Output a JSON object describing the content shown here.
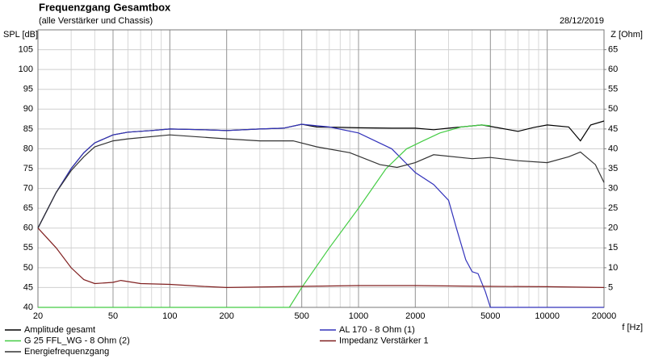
{
  "chart_data": {
    "type": "line",
    "title": "Frequenzgang Gesamtbox",
    "subtitle": "(alle Verstärker und Chassis)",
    "date": "28/12/2019",
    "ylabel": "SPL [dB]",
    "y2label": "Z [Ohm]",
    "xlabel": "f [Hz]",
    "xscale": "log",
    "xlim": [
      20,
      20000
    ],
    "xticks": [
      20,
      50,
      100,
      200,
      500,
      1000,
      2000,
      5000,
      10000,
      20000
    ],
    "xminor_grid": true,
    "ylim": [
      40,
      110
    ],
    "yticks": [
      40,
      45,
      50,
      55,
      60,
      65,
      70,
      75,
      80,
      85,
      90,
      95,
      100,
      105
    ],
    "y2lim": [
      0,
      70
    ],
    "y2ticks": [
      5,
      10,
      15,
      20,
      25,
      30,
      35,
      40,
      45,
      50,
      55,
      60,
      65
    ],
    "grid": true,
    "legend": "bottom",
    "series": [
      {
        "name": "Amplitude gesamt",
        "color": "#000000",
        "x": [
          20,
          25,
          30,
          35,
          40,
          50,
          60,
          80,
          100,
          150,
          200,
          300,
          400,
          500,
          600,
          800,
          1000,
          1500,
          2000,
          2500,
          3000,
          4500,
          5500,
          7000,
          8500,
          10000,
          13000,
          15000,
          17000,
          20000
        ],
        "values": [
          60,
          69,
          75,
          79,
          81.5,
          83.5,
          84.2,
          84.6,
          85,
          84.8,
          84.6,
          85,
          85.2,
          86.2,
          85.5,
          85.4,
          85.3,
          85.2,
          85.2,
          84.8,
          85.2,
          86,
          85.3,
          84.4,
          85.4,
          86,
          85.5,
          82,
          86,
          87
        ]
      },
      {
        "name": "AL 170 - 8 Ohm (1)",
        "color": "#3333bb",
        "x": [
          20,
          25,
          30,
          35,
          40,
          50,
          60,
          80,
          100,
          150,
          200,
          300,
          400,
          500,
          700,
          1000,
          1500,
          2000,
          2500,
          3000,
          3300,
          3700,
          4000,
          4300,
          4700,
          5000,
          10000,
          20000
        ],
        "values": [
          60,
          69,
          75,
          79,
          81.5,
          83.5,
          84.2,
          84.6,
          85,
          84.8,
          84.6,
          85,
          85.2,
          86.2,
          85.5,
          84,
          80,
          74,
          71,
          67,
          60,
          52,
          49,
          48.5,
          44,
          40,
          40,
          40
        ]
      },
      {
        "name": "G 25 FFL_WG - 8 Ohm (2)",
        "color": "#44cc44",
        "x": [
          20,
          100,
          430,
          500,
          700,
          1000,
          1400,
          1800,
          2200,
          2700,
          3500,
          4500,
          5000
        ],
        "values": [
          40,
          40,
          40,
          45,
          55,
          65,
          75,
          80,
          82,
          84,
          85.5,
          86,
          85.8
        ]
      },
      {
        "name": "Impedanz Verstärker 1",
        "color": "#802020",
        "axis": "y2",
        "x": [
          20,
          25,
          30,
          35,
          40,
          50,
          55,
          70,
          100,
          150,
          200,
          500,
          1000,
          2000,
          5000,
          10000,
          20000
        ],
        "values": [
          20,
          15,
          10,
          7,
          6,
          6.3,
          6.8,
          6,
          5.8,
          5.3,
          5,
          5.3,
          5.5,
          5.5,
          5.3,
          5.2,
          5
        ]
      },
      {
        "name": "Energiefrequenzgang",
        "color": "#333333",
        "x": [
          20,
          25,
          30,
          35,
          40,
          50,
          60,
          100,
          200,
          300,
          450,
          600,
          900,
          1300,
          1600,
          2000,
          2500,
          4000,
          5000,
          7000,
          10000,
          13000,
          15000,
          18000,
          20000
        ],
        "values": [
          60,
          69,
          74.5,
          78,
          80.5,
          82,
          82.5,
          83.5,
          82.5,
          82,
          82,
          80.5,
          79,
          76,
          75.3,
          76.5,
          78.5,
          77.5,
          77.8,
          77,
          76.5,
          78,
          79.2,
          76,
          71.5
        ]
      }
    ]
  }
}
